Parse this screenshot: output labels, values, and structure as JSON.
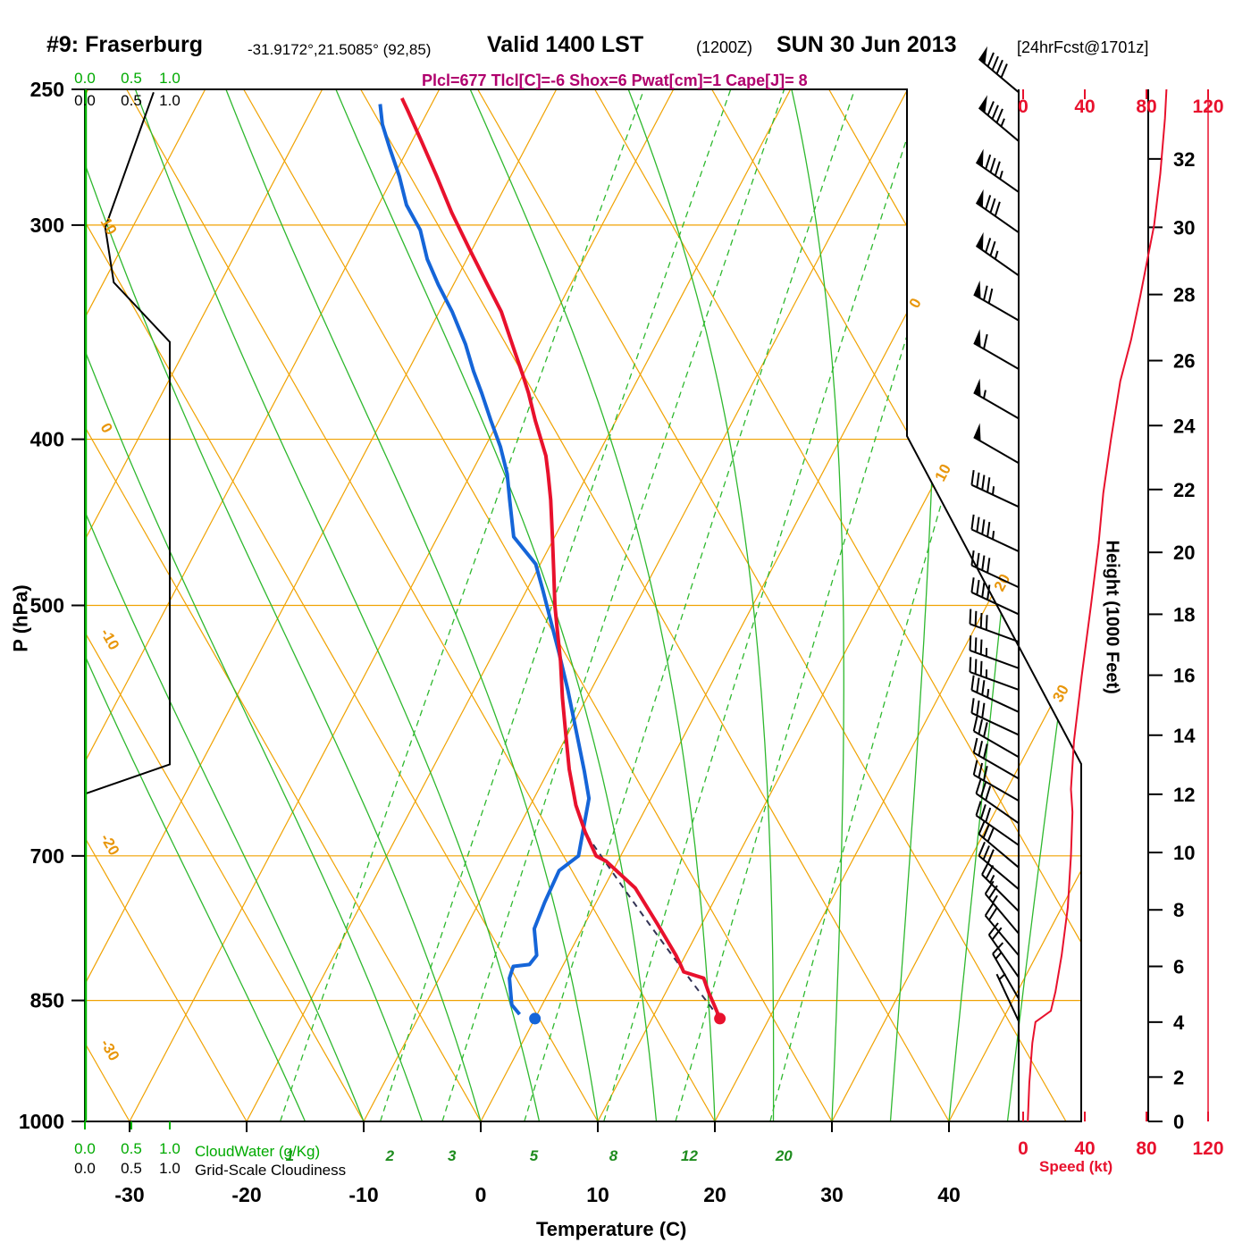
{
  "header": {
    "station": "#9: Fraserburg",
    "coords": "-31.9172°,21.5085° (92,85)",
    "valid": "Valid 1400 LST",
    "zulu": "(1200Z)",
    "date": "SUN 30 Jun 2013",
    "fcst": "[24hrFcst@1701z]",
    "indices_line": "Plcl=677 Tlcl[C]=-6 Shox=6 Pwat[cm]=1 Cape[J]= 8"
  },
  "axes": {
    "pressure_label": "P (hPa)",
    "pressure_ticks": [
      250,
      300,
      400,
      500,
      700,
      850,
      1000
    ],
    "temp_label": "Temperature (C)",
    "temp_ticks": [
      -30,
      -20,
      -10,
      0,
      10,
      20,
      30,
      40
    ],
    "height_label": "Height (1000 Feet)",
    "height_ticks": [
      0,
      2,
      4,
      6,
      8,
      10,
      12,
      14,
      16,
      18,
      20,
      22,
      24,
      26,
      28,
      30,
      32
    ],
    "speed_label": "Speed (kt)",
    "speed_ticks": [
      0,
      40,
      80,
      120
    ],
    "cloud_scale": [
      "0.0",
      "0.5",
      "1.0"
    ],
    "cloudwater_label": "CloudWater (g/Kg)",
    "cloudiness_label": "Grid-Scale Cloudiness"
  },
  "chart_data": {
    "type": "skewt_log_p_sounding",
    "pressure_range_hpa": [
      250,
      1000
    ],
    "temp_axis_range_c": [
      -30,
      40
    ],
    "indices": {
      "plcl_hpa": 677,
      "tlcl_c": -6,
      "showalter": 6,
      "pwat_cm": 1,
      "cape_j": 8
    },
    "surface": {
      "pressure_hpa": 871,
      "temp_c": 15.8,
      "dewpoint_c": 0.0
    },
    "temperature_profile_p_t": [
      [
        871,
        15.8
      ],
      [
        858,
        14.9
      ],
      [
        840,
        13.6
      ],
      [
        825,
        12.6
      ],
      [
        818,
        10.6
      ],
      [
        810,
        10.0
      ],
      [
        800,
        9.2
      ],
      [
        767,
        6.2
      ],
      [
        731,
        2.7
      ],
      [
        705,
        -1.0
      ],
      [
        700,
        -2.1
      ],
      [
        678,
        -4.1
      ],
      [
        654,
        -6.1
      ],
      [
        623,
        -8.3
      ],
      [
        594,
        -10.2
      ],
      [
        566,
        -12.1
      ],
      [
        539,
        -13.9
      ],
      [
        514,
        -15.8
      ],
      [
        500,
        -16.9
      ],
      [
        478,
        -18.5
      ],
      [
        456,
        -20.2
      ],
      [
        434,
        -22.0
      ],
      [
        419,
        -23.4
      ],
      [
        409,
        -24.4
      ],
      [
        390,
        -26.9
      ],
      [
        376,
        -28.7
      ],
      [
        367,
        -30.0
      ],
      [
        354,
        -32.0
      ],
      [
        337,
        -34.7
      ],
      [
        325,
        -37.1
      ],
      [
        310,
        -40.2
      ],
      [
        295,
        -43.4
      ],
      [
        281,
        -46.3
      ],
      [
        268,
        -49.2
      ],
      [
        257,
        -51.8
      ],
      [
        253,
        -52.8
      ]
    ],
    "dewpoint_profile_p_t": [
      [
        866,
        -1.5
      ],
      [
        855,
        -2.6
      ],
      [
        825,
        -4.0
      ],
      [
        812,
        -4.2
      ],
      [
        810,
        -2.9
      ],
      [
        800,
        -2.7
      ],
      [
        772,
        -4.1
      ],
      [
        745,
        -4.4
      ],
      [
        714,
        -4.6
      ],
      [
        700,
        -3.6
      ],
      [
        648,
        -5.3
      ],
      [
        625,
        -6.9
      ],
      [
        596,
        -9.1
      ],
      [
        560,
        -12.0
      ],
      [
        533,
        -14.4
      ],
      [
        508,
        -16.8
      ],
      [
        490,
        -18.6
      ],
      [
        473,
        -20.4
      ],
      [
        456,
        -23.5
      ],
      [
        434,
        -25.5
      ],
      [
        419,
        -26.9
      ],
      [
        404,
        -28.7
      ],
      [
        390,
        -30.7
      ],
      [
        376,
        -32.7
      ],
      [
        365,
        -34.4
      ],
      [
        352,
        -36.3
      ],
      [
        337,
        -38.9
      ],
      [
        325,
        -41.3
      ],
      [
        314,
        -43.4
      ],
      [
        302,
        -45.3
      ],
      [
        292,
        -47.6
      ],
      [
        281,
        -49.5
      ],
      [
        271,
        -51.5
      ],
      [
        262,
        -53.3
      ],
      [
        255,
        -54.4
      ]
    ],
    "parcel_path": {
      "p_start_hpa": 871,
      "t_start_c": 15.8,
      "p_lcl_hpa": 677
    },
    "wind_barbs_p_dir_kt": [
      [
        251,
        310,
        90
      ],
      [
        268,
        310,
        88
      ],
      [
        287,
        305,
        85
      ],
      [
        303,
        305,
        82
      ],
      [
        321,
        305,
        75
      ],
      [
        341,
        300,
        70
      ],
      [
        364,
        300,
        62
      ],
      [
        389,
        300,
        57
      ],
      [
        413,
        300,
        52
      ],
      [
        438,
        295,
        48
      ],
      [
        465,
        295,
        45
      ],
      [
        488,
        295,
        44
      ],
      [
        506,
        295,
        42
      ],
      [
        525,
        290,
        40
      ],
      [
        544,
        290,
        38
      ],
      [
        560,
        290,
        37
      ],
      [
        577,
        295,
        35
      ],
      [
        595,
        295,
        34
      ],
      [
        613,
        300,
        33
      ],
      [
        631,
        300,
        32
      ],
      [
        650,
        300,
        32
      ],
      [
        670,
        305,
        31
      ],
      [
        690,
        305,
        31
      ],
      [
        711,
        310,
        30
      ],
      [
        732,
        310,
        30
      ],
      [
        754,
        315,
        28
      ],
      [
        777,
        320,
        26
      ],
      [
        800,
        320,
        24
      ],
      [
        824,
        325,
        22
      ],
      [
        848,
        330,
        18
      ],
      [
        874,
        335,
        7
      ]
    ],
    "wind_speed_profile_p_kt": [
      [
        1000,
        3
      ],
      [
        950,
        4
      ],
      [
        900,
        6
      ],
      [
        875,
        8
      ],
      [
        862,
        18
      ],
      [
        840,
        21
      ],
      [
        800,
        25
      ],
      [
        750,
        29
      ],
      [
        700,
        31
      ],
      [
        660,
        32
      ],
      [
        640,
        31
      ],
      [
        600,
        33
      ],
      [
        550,
        38
      ],
      [
        500,
        44
      ],
      [
        460,
        49
      ],
      [
        430,
        52
      ],
      [
        400,
        57
      ],
      [
        370,
        63
      ],
      [
        350,
        70
      ],
      [
        330,
        76
      ],
      [
        300,
        85
      ],
      [
        280,
        89
      ],
      [
        260,
        92
      ],
      [
        250,
        93
      ]
    ],
    "cloudiness_profile_p_frac": [
      [
        251,
        0.81
      ],
      [
        301,
        0.24
      ],
      [
        324,
        0.34
      ],
      [
        351,
        1.0
      ],
      [
        619,
        1.0
      ],
      [
        644,
        0.0
      ]
    ],
    "isobar_lines_hpa": [
      300,
      400,
      500,
      700,
      850,
      1000
    ],
    "isotherm_step_c": 10,
    "dry_adiabat_labels_c": [
      10,
      0,
      -10,
      -20,
      -30
    ],
    "isotherm_labels_right_c": [
      0,
      10,
      20,
      30
    ],
    "mixing_ratio_lines_gkg": [
      1,
      2,
      3,
      5,
      8,
      12,
      20
    ],
    "moist_adiabats_c": [
      -15,
      -10,
      -5,
      0,
      5,
      10,
      15,
      20,
      25,
      30,
      35,
      40,
      45
    ]
  },
  "colors": {
    "grid_orange": "#f0a202",
    "orange_label": "#e8960a",
    "grid_green": "#2eb82e",
    "green_label": "#1e8c1e",
    "green_bright": "#00b400",
    "temp_red": "#e8112d",
    "dewpoint_blue": "#1565d8",
    "speed_red": "#e8112d",
    "magenta": "#b0006d",
    "parcel": "#333355",
    "black": "#000000"
  }
}
